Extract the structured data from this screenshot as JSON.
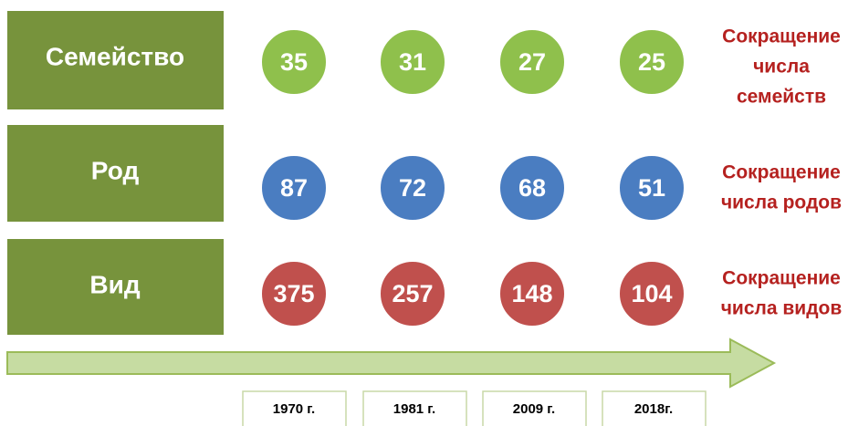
{
  "rows": [
    {
      "label": "Семейство",
      "values": [
        35,
        31,
        27,
        25
      ],
      "note": [
        "Сокращение",
        "числа",
        "семейств"
      ]
    },
    {
      "label": "Род",
      "values": [
        87,
        72,
        68,
        51
      ],
      "note": [
        "Сокращение",
        "числа родов"
      ]
    },
    {
      "label": "Вид",
      "values": [
        375,
        257,
        148,
        104
      ],
      "note": [
        "Сокращение",
        "числа видов"
      ]
    }
  ],
  "years": [
    "1970 г.",
    "1981 г.",
    "2009 г.",
    "2018г."
  ]
}
